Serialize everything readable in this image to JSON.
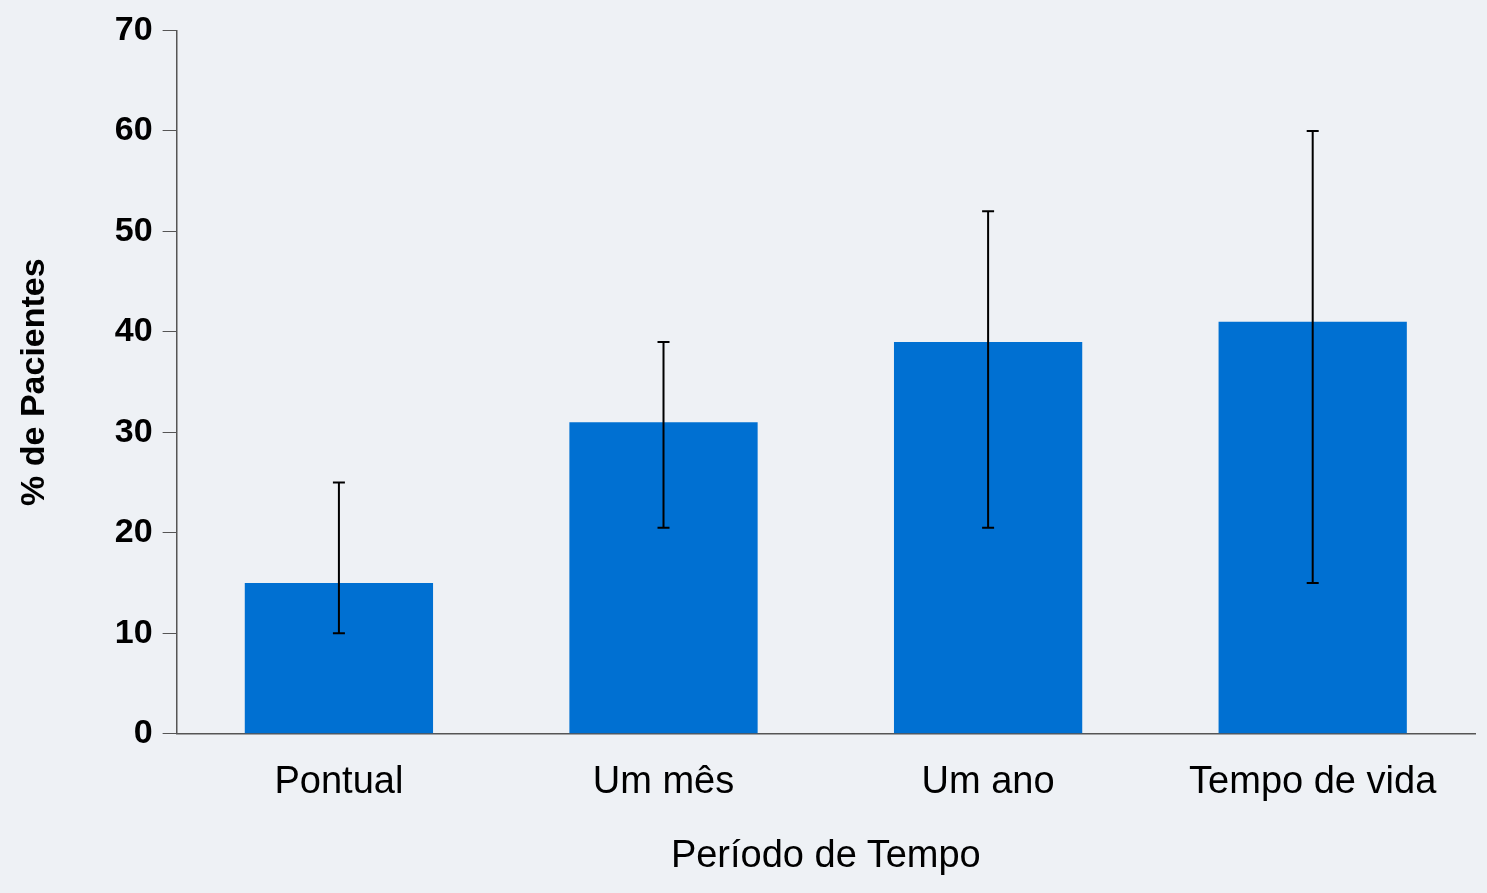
{
  "chart_data": {
    "type": "bar",
    "xlabel": "Período de Tempo",
    "ylabel": "% de Pacientes",
    "categories": [
      "Pontual",
      "Um mês",
      "Um ano",
      "Tempo de vida"
    ],
    "values": [
      15,
      31,
      39,
      41
    ],
    "errors": [
      [
        10,
        25
      ],
      [
        20.5,
        39
      ],
      [
        20.5,
        52
      ],
      [
        15,
        60
      ]
    ],
    "color": "#0070d2",
    "ylim": [
      0,
      70
    ],
    "yticks": [
      0,
      10,
      20,
      30,
      40,
      50,
      60,
      70
    ]
  }
}
